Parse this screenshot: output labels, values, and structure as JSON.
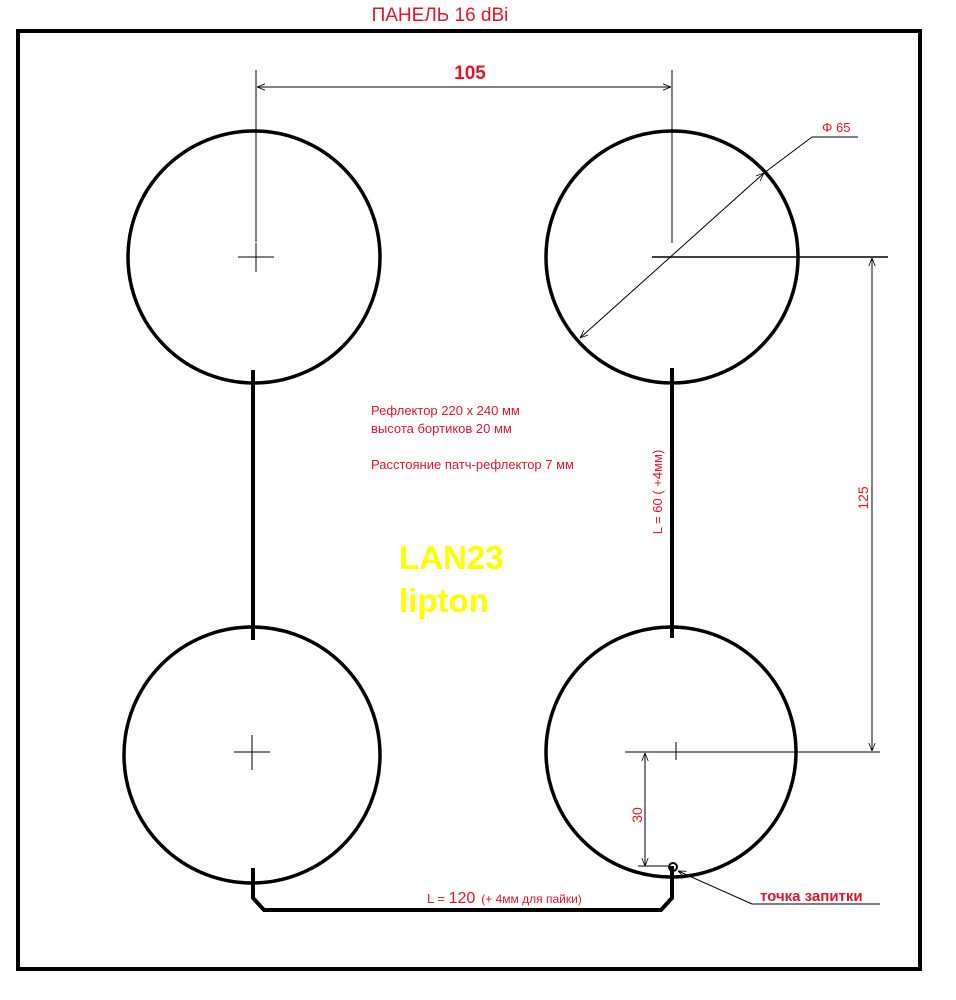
{
  "title": "ПАНЕЛЬ  16 dBi",
  "dimensions": {
    "horizontal_spacing": "105",
    "vertical_spacing": "125",
    "diameter": "Φ 65",
    "feed_offset": "30"
  },
  "notes": {
    "line1": "Рефлектор 220 х 240 мм",
    "line2": "высота бортиков 20 мм",
    "line3": "Расстояние патч-рефлектор 7 мм"
  },
  "feed_lines": {
    "vertical_prefix": "L = 60 ( +4мм)",
    "bottom_prefix": "L = ",
    "bottom_value": "120",
    "bottom_suffix": "(+ 4мм для пайки)"
  },
  "feed_point_label": "точка запитки",
  "watermark": {
    "line1": "LAN23",
    "line2": "lipton"
  },
  "colors": {
    "dimension_text": "#e0152e",
    "watermark": "#ffff00",
    "lines": "#000000"
  }
}
